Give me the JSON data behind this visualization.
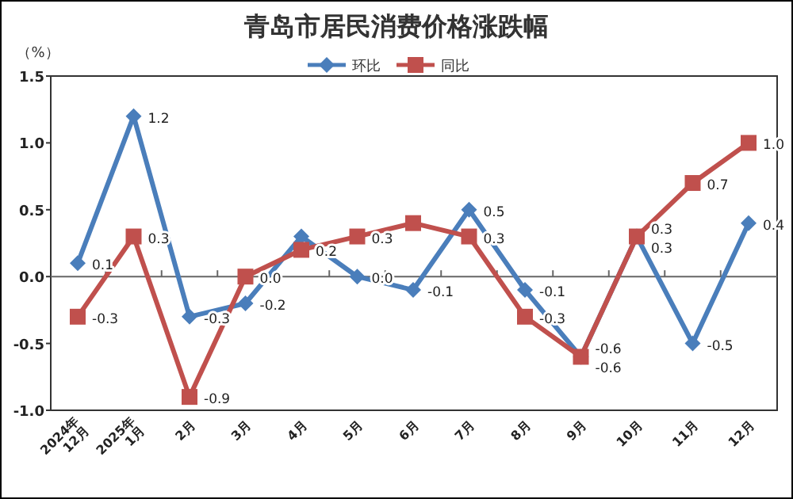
{
  "chart_data": {
    "type": "line",
    "title": "青岛市居民消费价格涨跌幅",
    "ylabel": "（%）",
    "categories": [
      "2024年\n12月",
      "2025年\n1月",
      "2月",
      "3月",
      "4月",
      "5月",
      "6月",
      "7月",
      "8月",
      "9月",
      "10月",
      "11月",
      "12月"
    ],
    "series": [
      {
        "name": "环比",
        "color": "#4a7ebb",
        "marker": "diamond",
        "values": [
          0.1,
          1.2,
          -0.3,
          -0.2,
          0.3,
          0.0,
          -0.1,
          0.5,
          -0.1,
          -0.6,
          0.3,
          -0.5,
          0.4
        ],
        "value_labels": [
          "0.1",
          "1.2",
          "-0.3",
          "-0.2",
          null,
          "0.0",
          "-0.1",
          "0.5",
          "-0.1",
          "-0.6",
          "0.3",
          "-0.5",
          "0.4"
        ]
      },
      {
        "name": "同比",
        "color": "#c0504d",
        "marker": "square",
        "values": [
          -0.3,
          0.3,
          -0.9,
          0.0,
          0.2,
          0.3,
          0.4,
          0.3,
          -0.3,
          -0.6,
          0.3,
          0.7,
          1.0
        ],
        "value_labels": [
          "-0.3",
          "0.3",
          "-0.9",
          "0.0",
          "0.2",
          "0.3",
          null,
          "0.3",
          "-0.3",
          "-0.6",
          "0.3",
          "0.7",
          "1.0"
        ]
      }
    ],
    "ylim": [
      -1.0,
      1.5
    ],
    "yticks": [
      {
        "value": -1.0,
        "label": "-1.0"
      },
      {
        "value": -0.5,
        "label": "-0.5"
      },
      {
        "value": 0.0,
        "label": "0.0"
      },
      {
        "value": 0.5,
        "label": "0.5"
      },
      {
        "value": 1.0,
        "label": "1.0"
      },
      {
        "value": 1.5,
        "label": "1.5"
      }
    ],
    "legend": "top"
  }
}
